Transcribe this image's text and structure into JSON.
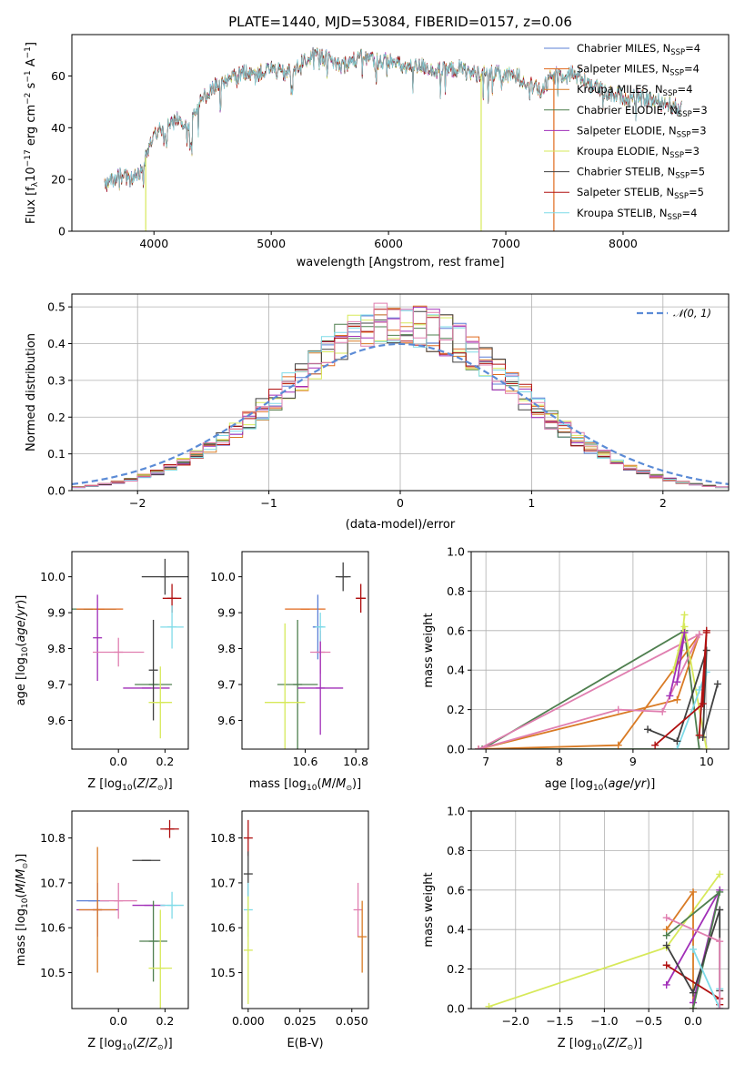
{
  "figure_title": "PLATE=1440, MJD=53084, FIBERID=0157, z=0.06",
  "colors": {
    "chabrier_miles": "#5b7fd6",
    "salpeter_miles": "#e06a1e",
    "kroupa_miles": "#d97b25",
    "chabrier_elodie": "#4f7f4f",
    "salpeter_elodie": "#a12fb8",
    "kroupa_elodie": "#d7e95a",
    "chabrier_stelib": "#404040",
    "salpeter_stelib": "#b01010",
    "kroupa_stelib": "#7fdbe8",
    "gaussian": "#5b8bd6",
    "pink": "#e07fb0"
  },
  "chart_data": [
    {
      "id": "spectrum",
      "type": "line",
      "title": "PLATE=1440, MJD=53084, FIBERID=0157, z=0.06",
      "xlabel": "wavelength [Angstrom, rest frame]",
      "ylabel": "Flux [f",
      "xlim": [
        3300,
        8900
      ],
      "ylim": [
        0,
        76
      ],
      "xticks": [
        "4000",
        "5000",
        "6000",
        "7000",
        "8000"
      ],
      "yticks": [
        "0",
        "20",
        "40",
        "60"
      ],
      "legend": [
        {
          "text": "Chabrier MILES, N",
          "sub": "SSP",
          "val": "=4",
          "key": "chabrier_miles"
        },
        {
          "text": "Salpeter MILES, N",
          "sub": "SSP",
          "val": "=4",
          "key": "salpeter_miles"
        },
        {
          "text": "Kroupa MILES, N",
          "sub": "SSP",
          "val": "=4",
          "key": "kroupa_miles"
        },
        {
          "text": "Chabrier ELODIE, N",
          "sub": "SSP",
          "val": "=3",
          "key": "chabrier_elodie"
        },
        {
          "text": "Salpeter ELODIE, N",
          "sub": "SSP",
          "val": "=3",
          "key": "salpeter_elodie"
        },
        {
          "text": "Kroupa ELODIE, N",
          "sub": "SSP",
          "val": "=3",
          "key": "kroupa_elodie"
        },
        {
          "text": "Chabrier STELIB, N",
          "sub": "SSP",
          "val": "=5",
          "key": "chabrier_stelib"
        },
        {
          "text": "Salpeter STELIB, N",
          "sub": "SSP",
          "val": "=5",
          "key": "salpeter_stelib"
        },
        {
          "text": "Kroupa STELIB, N",
          "sub": "SSP",
          "val": "=4",
          "key": "kroupa_stelib"
        }
      ],
      "continuum": [
        [
          3580,
          17
        ],
        [
          3700,
          22
        ],
        [
          3800,
          20
        ],
        [
          3900,
          24
        ],
        [
          3960,
          33
        ],
        [
          4000,
          38
        ],
        [
          4100,
          41
        ],
        [
          4200,
          43
        ],
        [
          4300,
          42
        ],
        [
          4400,
          50
        ],
        [
          4500,
          56
        ],
        [
          4600,
          57
        ],
        [
          4700,
          60
        ],
        [
          4800,
          62
        ],
        [
          4900,
          61
        ],
        [
          5000,
          63
        ],
        [
          5100,
          61
        ],
        [
          5200,
          62
        ],
        [
          5300,
          67
        ],
        [
          5400,
          68
        ],
        [
          5500,
          66
        ],
        [
          5600,
          64
        ],
        [
          5700,
          66
        ],
        [
          5800,
          67
        ],
        [
          5900,
          66
        ],
        [
          6000,
          66
        ],
        [
          6100,
          64
        ],
        [
          6200,
          63
        ],
        [
          6300,
          64
        ],
        [
          6400,
          62
        ],
        [
          6500,
          62
        ],
        [
          6600,
          63
        ],
        [
          6700,
          61
        ],
        [
          6800,
          61
        ],
        [
          6900,
          61
        ],
        [
          7000,
          60
        ],
        [
          7100,
          60
        ],
        [
          7200,
          57
        ],
        [
          7300,
          54
        ],
        [
          7400,
          60
        ],
        [
          7500,
          61
        ],
        [
          7600,
          61
        ],
        [
          7700,
          58
        ],
        [
          7800,
          55
        ],
        [
          7900,
          53
        ],
        [
          8000,
          52
        ],
        [
          8100,
          52
        ],
        [
          8200,
          51
        ],
        [
          8300,
          50
        ],
        [
          8400,
          49
        ],
        [
          8500,
          47
        ]
      ],
      "dropouts": [
        {
          "x": 3930,
          "key": "kroupa_elodie"
        },
        {
          "x": 6790,
          "key": "kroupa_elodie"
        },
        {
          "x": 7410,
          "key": "salpeter_miles"
        }
      ]
    },
    {
      "id": "residuals",
      "type": "bar",
      "xlabel": "(data-model)/error",
      "ylabel": "Normed distribution",
      "xlim": [
        -2.5,
        2.5
      ],
      "ylim": [
        0,
        0.535
      ],
      "xticks": [
        "-2",
        "-1",
        "0",
        "1",
        "2"
      ],
      "yticks": [
        "0.0",
        "0.1",
        "0.2",
        "0.3",
        "0.4",
        "0.5"
      ],
      "bin_width": 0.1,
      "legend_label": "\u0000",
      "gaussian_legend": "𝒩(0, 1)"
    },
    {
      "id": "age_vs_Z",
      "type": "scatter",
      "xlabel": "Z [log",
      "ylabel": "age  [log",
      "xlim": [
        -0.2,
        0.3
      ],
      "ylim": [
        9.52,
        10.07
      ],
      "xticks": [
        "0.0",
        "0.2"
      ],
      "yticks": [
        "9.6",
        "9.7",
        "9.8",
        "9.9",
        "10.0"
      ],
      "points": [
        {
          "x": 0.2,
          "y": 10.0,
          "xerr": 0.1,
          "yerr": 0.05,
          "key": "chabrier_stelib"
        },
        {
          "x": 0.23,
          "y": 9.94,
          "xerr": 0.04,
          "yerr": 0.04,
          "key": "salpeter_stelib"
        },
        {
          "x": -0.13,
          "y": 9.91,
          "xerr": 0.12,
          "yerr": 0.0,
          "key": "chabrier_elodie"
        },
        {
          "x": -0.08,
          "y": 9.91,
          "xerr": 0.1,
          "yerr": 0.0,
          "key": "salpeter_miles"
        },
        {
          "x": -0.09,
          "y": 9.83,
          "xerr": 0.0,
          "yerr": 0.12,
          "key": "salpeter_elodie"
        },
        {
          "x": 0.0,
          "y": 9.79,
          "xerr": 0.11,
          "yerr": 0.04,
          "key": "pink"
        },
        {
          "x": 0.23,
          "y": 9.86,
          "xerr": 0.05,
          "yerr": 0.06,
          "key": "kroupa_stelib"
        },
        {
          "x": 0.15,
          "y": 9.7,
          "xerr": 0.08,
          "yerr": 0.0,
          "key": "chabrier_elodie"
        },
        {
          "x": 0.12,
          "y": 9.69,
          "xerr": 0.1,
          "yerr": 0.0,
          "key": "salpeter_elodie"
        },
        {
          "x": 0.15,
          "y": 9.74,
          "xerr": 0.0,
          "yerr": 0.14,
          "key": "chabrier_stelib"
        },
        {
          "x": 0.18,
          "y": 9.65,
          "xerr": 0.05,
          "yerr": 0.1,
          "key": "kroupa_elodie"
        }
      ]
    },
    {
      "id": "age_vs_mass",
      "type": "scatter",
      "xlabel": "mass [log",
      "ylabel": "",
      "xlim": [
        10.35,
        10.85
      ],
      "ylim": [
        9.52,
        10.07
      ],
      "xticks": [
        "10.6",
        "10.8"
      ],
      "yticks": [
        "9.6",
        "9.7",
        "9.8",
        "9.9",
        "10.0"
      ],
      "points": [
        {
          "x": 10.75,
          "y": 10.0,
          "xerr": 0.03,
          "yerr": 0.04,
          "key": "chabrier_stelib"
        },
        {
          "x": 10.82,
          "y": 9.94,
          "xerr": 0.02,
          "yerr": 0.04,
          "key": "salpeter_stelib"
        },
        {
          "x": 10.6,
          "y": 9.91,
          "xerr": 0.08,
          "yerr": 0.0,
          "key": "salpeter_miles"
        },
        {
          "x": 10.65,
          "y": 9.86,
          "xerr": 0.02,
          "yerr": 0.09,
          "key": "chabrier_miles"
        },
        {
          "x": 10.66,
          "y": 9.79,
          "xerr": 0.04,
          "yerr": 0.06,
          "key": "pink"
        },
        {
          "x": 10.66,
          "y": 9.86,
          "xerr": 0.02,
          "yerr": 0.04,
          "key": "kroupa_stelib"
        },
        {
          "x": 10.57,
          "y": 9.7,
          "xerr": 0.08,
          "yerr": 0.18,
          "key": "chabrier_elodie"
        },
        {
          "x": 10.66,
          "y": 9.69,
          "xerr": 0.09,
          "yerr": 0.13,
          "key": "salpeter_elodie"
        },
        {
          "x": 10.52,
          "y": 9.65,
          "xerr": 0.08,
          "yerr": 0.22,
          "key": "kroupa_elodie"
        }
      ]
    },
    {
      "id": "mass_weight_vs_age",
      "type": "line",
      "xlabel": "age  [log",
      "ylabel": "mass weight",
      "xlim": [
        6.8,
        10.3
      ],
      "ylim": [
        0,
        1
      ],
      "xticks": [
        "7",
        "8",
        "9",
        "10"
      ],
      "yticks": [
        "0.0",
        "0.2",
        "0.4",
        "0.6",
        "0.8",
        "1.0"
      ],
      "series": [
        {
          "key": "chabrier_elodie",
          "x": [
            6.95,
            9.7,
            9.9,
            6.95
          ],
          "y": [
            0.0,
            0.6,
            0.0,
            0.0
          ]
        },
        {
          "key": "kroupa_miles",
          "x": [
            6.9,
            8.8,
            9.9,
            9.6,
            6.9
          ],
          "y": [
            0.0,
            0.02,
            0.58,
            0.25,
            0.0
          ]
        },
        {
          "key": "pink",
          "x": [
            6.9,
            8.8,
            9.4,
            9.9,
            6.9
          ],
          "y": [
            0.0,
            0.2,
            0.19,
            0.58,
            0.0
          ]
        },
        {
          "key": "kroupa_elodie",
          "x": [
            9.7,
            9.65,
            9.55,
            9.7,
            10.0
          ],
          "y": [
            0.68,
            0.5,
            0.4,
            0.62,
            0.0
          ]
        },
        {
          "key": "kroupa_stelib",
          "x": [
            9.6,
            10.0,
            9.9
          ],
          "y": [
            0.0,
            0.39,
            0.3
          ]
        },
        {
          "key": "salpeter_elodie",
          "x": [
            9.5,
            9.7,
            9.6
          ],
          "y": [
            0.27,
            0.59,
            0.34
          ]
        },
        {
          "key": "chabrier_stelib",
          "x": [
            9.2,
            9.6,
            10.0,
            9.95,
            10.15
          ],
          "y": [
            0.1,
            0.04,
            0.5,
            0.06,
            0.33
          ]
        },
        {
          "key": "salpeter_stelib",
          "x": [
            9.3,
            9.95,
            10.0,
            9.9,
            10.0
          ],
          "y": [
            0.02,
            0.23,
            0.59,
            0.07,
            0.6
          ]
        }
      ]
    },
    {
      "id": "mass_vs_Z",
      "type": "scatter",
      "xlabel": "Z [log",
      "ylabel": "mass [log",
      "xlim": [
        -0.2,
        0.3
      ],
      "ylim": [
        10.42,
        10.86
      ],
      "xticks": [
        "0.0",
        "0.2"
      ],
      "yticks": [
        "10.5",
        "10.6",
        "10.7",
        "10.8"
      ],
      "points": [
        {
          "x": 0.22,
          "y": 10.82,
          "xerr": 0.04,
          "yerr": 0.02,
          "key": "salpeter_stelib"
        },
        {
          "x": 0.12,
          "y": 10.75,
          "xerr": 0.06,
          "yerr": 0.0,
          "key": "chabrier_stelib"
        },
        {
          "x": -0.09,
          "y": 10.64,
          "xerr": 0.09,
          "yerr": 0.06,
          "key": "salpeter_elodie"
        },
        {
          "x": -0.11,
          "y": 10.66,
          "xerr": 0.07,
          "yerr": 0.0,
          "key": "chabrier_miles"
        },
        {
          "x": -0.09,
          "y": 10.64,
          "xerr": 0.08,
          "yerr": 0.14,
          "key": "kroupa_miles"
        },
        {
          "x": 0.0,
          "y": 10.66,
          "xerr": 0.08,
          "yerr": 0.04,
          "key": "pink"
        },
        {
          "x": 0.13,
          "y": 10.65,
          "xerr": 0.07,
          "yerr": 0.0,
          "key": "salpeter_elodie"
        },
        {
          "x": 0.23,
          "y": 10.65,
          "xerr": 0.05,
          "yerr": 0.03,
          "key": "kroupa_stelib"
        },
        {
          "x": 0.15,
          "y": 10.57,
          "xerr": 0.06,
          "yerr": 0.09,
          "key": "chabrier_elodie"
        },
        {
          "x": 0.18,
          "y": 10.51,
          "xerr": 0.05,
          "yerr": 0.13,
          "key": "kroupa_elodie"
        }
      ]
    },
    {
      "id": "mass_vs_ebv",
      "type": "scatter",
      "xlabel": "E(B-V)",
      "ylabel": "",
      "xlim": [
        -0.003,
        0.058
      ],
      "ylim": [
        10.42,
        10.86
      ],
      "xticks": [
        "0.000",
        "0.025",
        "0.050"
      ],
      "yticks": [
        "10.5",
        "10.6",
        "10.7",
        "10.8"
      ],
      "points": [
        {
          "x": 0.0,
          "y": 10.8,
          "xerr": 0.0,
          "yerr": 0.04,
          "key": "salpeter_stelib"
        },
        {
          "x": 0.0,
          "y": 10.72,
          "xerr": 0.0,
          "yerr": 0.05,
          "key": "chabrier_stelib"
        },
        {
          "x": 0.0,
          "y": 10.64,
          "xerr": 0.0,
          "yerr": 0.06,
          "key": "kroupa_stelib"
        },
        {
          "x": 0.0,
          "y": 10.55,
          "xerr": 0.0,
          "yerr": 0.12,
          "key": "kroupa_elodie"
        },
        {
          "x": 0.053,
          "y": 10.64,
          "xerr": 0.0,
          "yerr": 0.06,
          "key": "pink"
        },
        {
          "x": 0.055,
          "y": 10.58,
          "xerr": 0.0,
          "yerr": 0.08,
          "key": "kroupa_miles"
        }
      ]
    },
    {
      "id": "mass_weight_vs_Z",
      "type": "line",
      "xlabel": "Z [log",
      "ylabel": "mass weight",
      "xlim": [
        -2.5,
        0.4
      ],
      "ylim": [
        0,
        1
      ],
      "xticks": [
        "-2.0",
        "-1.5",
        "-1.0",
        "-0.5",
        "0.0"
      ],
      "yticks": [
        "0.0",
        "0.2",
        "0.4",
        "0.6",
        "0.8",
        "1.0"
      ],
      "series": [
        {
          "key": "kroupa_elodie",
          "x": [
            -2.3,
            -0.3,
            0.3
          ],
          "y": [
            0.01,
            0.31,
            0.68
          ]
        },
        {
          "key": "kroupa_miles",
          "x": [
            -0.3,
            0.0,
            0.0
          ],
          "y": [
            0.4,
            0.59,
            0.0
          ]
        },
        {
          "key": "salpeter_elodie",
          "x": [
            -0.3,
            0.3,
            0.0
          ],
          "y": [
            0.12,
            0.6,
            0.03
          ]
        },
        {
          "key": "chabrier_elodie",
          "x": [
            -0.3,
            0.3,
            0.0
          ],
          "y": [
            0.37,
            0.59,
            0.0
          ]
        },
        {
          "key": "salpeter_stelib",
          "x": [
            -0.3,
            0.3,
            0.3
          ],
          "y": [
            0.22,
            0.05,
            0.02
          ]
        },
        {
          "key": "chabrier_stelib",
          "x": [
            -0.3,
            0.0,
            0.3,
            0.3
          ],
          "y": [
            0.32,
            0.08,
            0.5,
            0.09
          ]
        },
        {
          "key": "kroupa_stelib",
          "x": [
            0.0,
            0.3,
            0.3
          ],
          "y": [
            0.3,
            0.0,
            0.1
          ]
        },
        {
          "key": "pink",
          "x": [
            -0.3,
            0.3,
            0.3
          ],
          "y": [
            0.46,
            0.34,
            0.0
          ]
        }
      ]
    }
  ],
  "labels": {
    "spec_ylabel": "Flux [f",
    "res_gauss": "𝒩(0, 1)"
  }
}
